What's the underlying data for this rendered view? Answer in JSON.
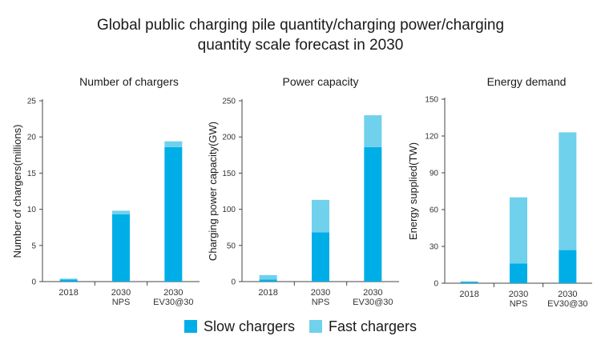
{
  "title_lines": [
    "Global public charging pile quantity/charging power/charging",
    "quantity scale forecast in 2030"
  ],
  "colors": {
    "slow": "#00aee7",
    "fast": "#6fd1ec",
    "axis": "#444444",
    "grid": "#dddddd"
  },
  "legend": [
    {
      "label": "Slow chargers",
      "color": "#00aee7"
    },
    {
      "label": "Fast chargers",
      "color": "#6fd1ec"
    }
  ],
  "chart_data": [
    {
      "type": "bar",
      "stacked": true,
      "title": "Number of chargers",
      "ylabel": "Number of chargers(millions)",
      "categories": [
        [
          "2018"
        ],
        [
          "2030",
          "NPS"
        ],
        [
          "2030",
          "EV30@30"
        ]
      ],
      "ylim": [
        0,
        25
      ],
      "yticks": [
        0,
        5,
        10,
        15,
        20,
        25
      ],
      "series": [
        {
          "name": "Slow chargers",
          "values": [
            0.3,
            9.3,
            18.6
          ]
        },
        {
          "name": "Fast chargers",
          "values": [
            0.1,
            0.5,
            0.8
          ]
        }
      ]
    },
    {
      "type": "bar",
      "stacked": true,
      "title": "Power capacity",
      "ylabel": "Charging power capacity(GW)",
      "categories": [
        [
          "2018"
        ],
        [
          "2030",
          "NPS"
        ],
        [
          "2030",
          "EV30@30"
        ]
      ],
      "ylim": [
        0,
        250
      ],
      "yticks": [
        0,
        50,
        100,
        150,
        200,
        250
      ],
      "series": [
        {
          "name": "Slow chargers",
          "values": [
            3,
            68,
            186
          ]
        },
        {
          "name": "Fast chargers",
          "values": [
            6,
            45,
            44
          ]
        }
      ]
    },
    {
      "type": "bar",
      "stacked": true,
      "title": "Energy demand",
      "ylabel": "Energy supplied(TW)",
      "categories": [
        [
          "2018"
        ],
        [
          "2030",
          "NPS"
        ],
        [
          "2030",
          "EV30@30"
        ]
      ],
      "ylim": [
        0,
        150
      ],
      "yticks": [
        0,
        30,
        60,
        90,
        120,
        150
      ],
      "series": [
        {
          "name": "Slow chargers",
          "values": [
            1,
            16,
            27
          ]
        },
        {
          "name": "Fast chargers",
          "values": [
            0.5,
            54,
            96
          ]
        }
      ]
    }
  ]
}
